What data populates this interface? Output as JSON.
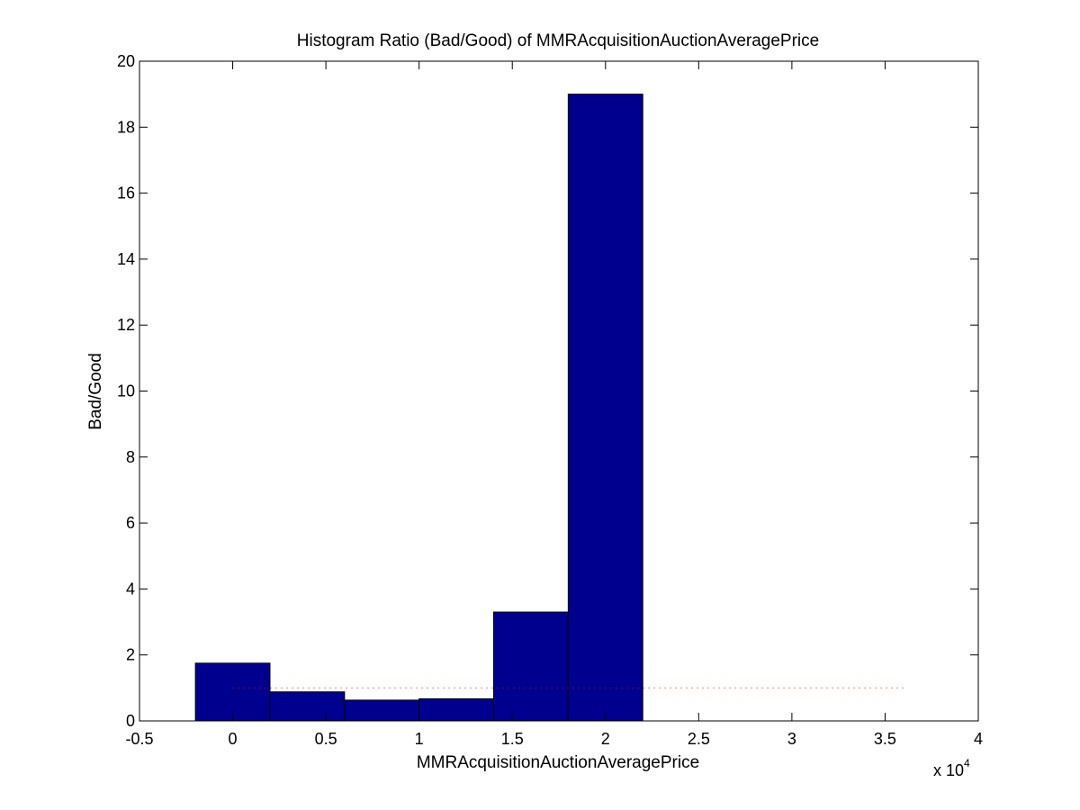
{
  "chart_data": {
    "type": "bar",
    "title": "Histogram Ratio (Bad/Good) of MMRAcquisitionAuctionAveragePrice",
    "xlabel": "MMRAcquisitionAuctionAveragePrice",
    "ylabel": "Bad/Good",
    "x_multiplier": "x 10",
    "x_multiplier_exponent": "4",
    "xlim": [
      -0.5,
      4
    ],
    "ylim": [
      0,
      20
    ],
    "x_ticks": [
      -0.5,
      0,
      0.5,
      1,
      1.5,
      2,
      2.5,
      3,
      3.5,
      4
    ],
    "x_tick_labels": [
      "-0.5",
      "0",
      "0.5",
      "1",
      "1.5",
      "2",
      "2.5",
      "3",
      "3.5",
      "4"
    ],
    "y_ticks": [
      0,
      2,
      4,
      6,
      8,
      10,
      12,
      14,
      16,
      18,
      20
    ],
    "y_tick_labels": [
      "0",
      "2",
      "4",
      "6",
      "8",
      "10",
      "12",
      "14",
      "16",
      "18",
      "20"
    ],
    "bin_centers": [
      0,
      0.4,
      0.8,
      1.2,
      1.6,
      2.0
    ],
    "bin_width": 0.4,
    "values": [
      1.75,
      0.88,
      0.63,
      0.67,
      3.3,
      19.0
    ],
    "reference_line": {
      "y": 1,
      "x_start": 0,
      "x_end": 3.6
    },
    "grid": false,
    "colors": {
      "bar": "#00008f",
      "reference_line": "#ff0000"
    }
  }
}
